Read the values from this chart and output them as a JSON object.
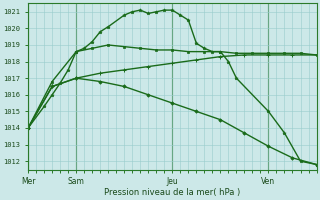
{
  "bg_color": "#cce8e8",
  "grid_color": "#99cccc",
  "line_color": "#1a6b1a",
  "ylabel_values": [
    1012,
    1013,
    1014,
    1015,
    1016,
    1017,
    1018,
    1019,
    1020,
    1021
  ],
  "ylim": [
    1011.5,
    1021.5
  ],
  "xlabel": "Pression niveau de la mer( hPa )",
  "day_labels": [
    "Mer",
    "Sam",
    "Jeu",
    "Ven"
  ],
  "day_positions": [
    0,
    6,
    18,
    30
  ],
  "xlim": [
    0,
    36
  ],
  "line1_x": [
    0,
    2,
    3,
    4,
    5,
    6,
    7,
    8,
    9,
    10,
    12,
    13,
    14,
    15,
    16,
    17,
    18,
    19,
    20,
    21,
    22,
    23,
    24,
    25,
    26,
    30,
    32,
    34,
    36
  ],
  "line1_y": [
    1014.0,
    1015.3,
    1016.0,
    1016.7,
    1017.5,
    1018.6,
    1018.8,
    1019.2,
    1019.8,
    1020.1,
    1020.8,
    1021.0,
    1021.1,
    1020.9,
    1021.0,
    1021.1,
    1021.1,
    1020.8,
    1020.5,
    1019.1,
    1018.8,
    1018.6,
    1018.6,
    1018.0,
    1017.0,
    1015.0,
    1013.7,
    1012.0,
    1011.8
  ],
  "line2_x": [
    0,
    3,
    6,
    8,
    10,
    12,
    14,
    16,
    18,
    20,
    22,
    24,
    26,
    28,
    30,
    32,
    34,
    36
  ],
  "line2_y": [
    1014.0,
    1016.8,
    1018.6,
    1018.8,
    1019.0,
    1018.9,
    1018.8,
    1018.7,
    1018.7,
    1018.6,
    1018.6,
    1018.6,
    1018.5,
    1018.5,
    1018.5,
    1018.5,
    1018.5,
    1018.4
  ],
  "line3_x": [
    0,
    3,
    6,
    9,
    12,
    15,
    18,
    21,
    24,
    27,
    30,
    33,
    36
  ],
  "line3_y": [
    1014.0,
    1016.5,
    1017.0,
    1017.3,
    1017.5,
    1017.7,
    1017.9,
    1018.1,
    1018.3,
    1018.4,
    1018.4,
    1018.4,
    1018.4
  ],
  "line4_x": [
    0,
    3,
    6,
    9,
    12,
    15,
    18,
    21,
    24,
    27,
    30,
    33,
    36
  ],
  "line4_y": [
    1014.0,
    1016.5,
    1017.0,
    1016.8,
    1016.5,
    1016.0,
    1015.5,
    1015.0,
    1014.5,
    1013.7,
    1012.9,
    1012.2,
    1011.8
  ]
}
